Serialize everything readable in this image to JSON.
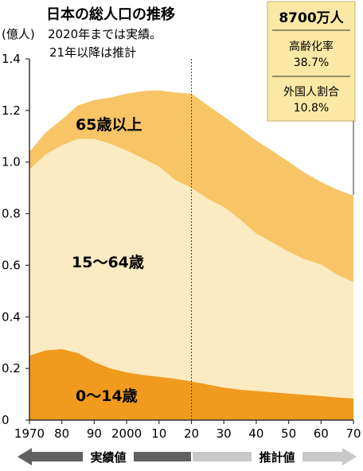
{
  "chart_data": {
    "type": "area",
    "stacked": true,
    "title": "日本の総人口の推移",
    "ylabel": "(億人)",
    "note_lines": [
      "2020年までは実績。",
      "21年以降は推計"
    ],
    "ylim": [
      0,
      1.4
    ],
    "yticks": [
      0,
      0.2,
      0.4,
      0.6,
      0.8,
      1.0,
      1.2,
      1.4
    ],
    "ytick_labels": [
      "0",
      "0.2",
      "0.4",
      "0.6",
      "0.8",
      "1.0",
      "1.2",
      "1.4"
    ],
    "xlim": [
      1970,
      2070
    ],
    "xticks": [
      1970,
      1980,
      1990,
      2000,
      2010,
      2020,
      2030,
      2040,
      2050,
      2060,
      2070
    ],
    "xtick_labels": [
      "1970",
      "80",
      "90",
      "2000",
      "10",
      "20",
      "30",
      "40",
      "50",
      "60",
      "70"
    ],
    "divider_year": 2020,
    "x": [
      1970,
      1975,
      1980,
      1985,
      1990,
      1995,
      2000,
      2005,
      2010,
      2015,
      2020,
      2025,
      2030,
      2035,
      2040,
      2045,
      2050,
      2055,
      2060,
      2065,
      2070
    ],
    "series": [
      {
        "name": "0〜14歳",
        "color": "#F09A1E",
        "values": [
          0.25,
          0.27,
          0.275,
          0.26,
          0.225,
          0.2,
          0.185,
          0.175,
          0.168,
          0.16,
          0.15,
          0.138,
          0.126,
          0.118,
          0.113,
          0.108,
          0.103,
          0.098,
          0.093,
          0.088,
          0.084
        ]
      },
      {
        "name": "15〜64歳",
        "color": "#FCEBC2",
        "values": [
          0.72,
          0.76,
          0.79,
          0.83,
          0.865,
          0.87,
          0.86,
          0.84,
          0.815,
          0.77,
          0.75,
          0.72,
          0.7,
          0.66,
          0.61,
          0.58,
          0.55,
          0.525,
          0.51,
          0.475,
          0.45
        ]
      },
      {
        "name": "65歳以上",
        "color": "#F7C466",
        "values": [
          0.07,
          0.085,
          0.1,
          0.13,
          0.15,
          0.18,
          0.22,
          0.26,
          0.295,
          0.34,
          0.365,
          0.362,
          0.35,
          0.352,
          0.36,
          0.355,
          0.348,
          0.335,
          0.32,
          0.33,
          0.336
        ]
      }
    ],
    "band_labels": [
      "65歳以上",
      "15〜64歳",
      "0〜14歳"
    ],
    "phase_labels": {
      "actual": "実績値",
      "forecast": "推計値"
    }
  },
  "info_box": {
    "total": "8700万人",
    "aging_label": "高齢化率",
    "aging_value": "38.7%",
    "foreign_label": "外国人割合",
    "foreign_value": "10.8%"
  }
}
